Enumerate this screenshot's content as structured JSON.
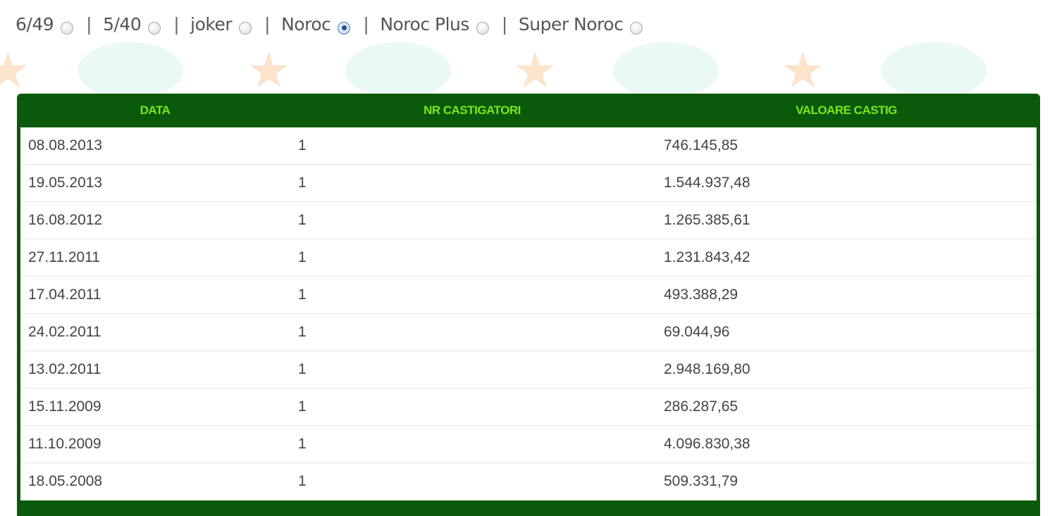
{
  "games": [
    {
      "label": "6/49",
      "selected": false
    },
    {
      "label": "5/40",
      "selected": false
    },
    {
      "label": "joker",
      "selected": false
    },
    {
      "label": "Noroc",
      "selected": true
    },
    {
      "label": "Noroc Plus",
      "selected": false
    },
    {
      "label": "Super Noroc",
      "selected": false
    }
  ],
  "separator": "|",
  "table": {
    "headers": [
      "DATA",
      "NR CASTIGATORI",
      "VALOARE CASTIG"
    ],
    "rows": [
      [
        "08.08.2013",
        "1",
        "746.145,85"
      ],
      [
        "19.05.2013",
        "1",
        "1.544.937,48"
      ],
      [
        "16.08.2012",
        "1",
        "1.265.385,61"
      ],
      [
        "27.11.2011",
        "1",
        "1.231.843,42"
      ],
      [
        "17.04.2011",
        "1",
        "493.388,29"
      ],
      [
        "24.02.2011",
        "1",
        "69.044,96"
      ],
      [
        "13.02.2011",
        "1",
        "2.948.169,80"
      ],
      [
        "15.11.2009",
        "1",
        "286.287,65"
      ],
      [
        "11.10.2009",
        "1",
        "4.096.830,38"
      ],
      [
        "18.05.2008",
        "1",
        "509.331,79"
      ]
    ]
  },
  "colors": {
    "header_bg": "#0b5a0b",
    "header_text": "#7ee51e",
    "selected_radio": "#1f4f86"
  }
}
